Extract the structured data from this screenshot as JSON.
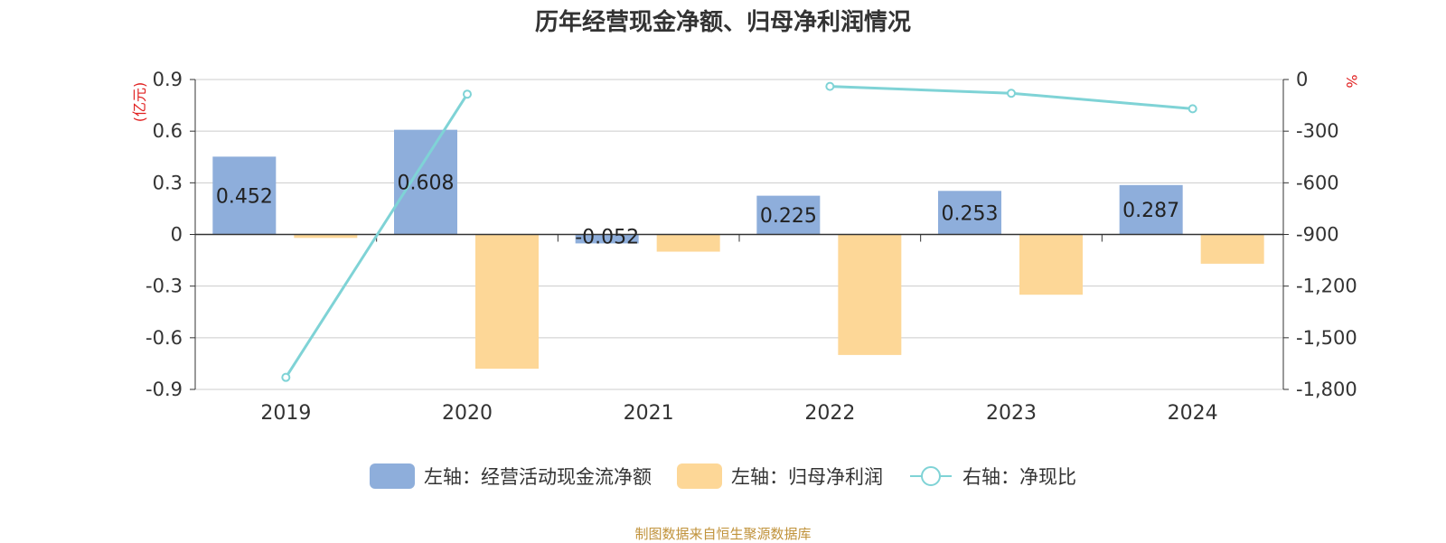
{
  "chart_data": {
    "type": "bar",
    "title": "历年经营现金净额、归母净利润情况",
    "categories": [
      "2019",
      "2020",
      "2021",
      "2022",
      "2023",
      "2024"
    ],
    "series": [
      {
        "name": "左轴：经营活动现金流净额",
        "type": "bar",
        "axis": "left",
        "color": "#8eaedb",
        "values": [
          0.452,
          0.608,
          -0.052,
          0.225,
          0.253,
          0.287
        ]
      },
      {
        "name": "左轴：归母净利润",
        "type": "bar",
        "axis": "left",
        "color": "#fdd797",
        "values": [
          -0.02,
          -0.78,
          -0.1,
          -0.7,
          -0.35,
          -0.17
        ]
      },
      {
        "name": "右轴：净现比",
        "type": "line",
        "axis": "right",
        "color": "#7fd3d6",
        "values": [
          -1730,
          -85,
          null,
          -40,
          -80,
          -170
        ]
      }
    ],
    "left_axis": {
      "label": "(亿元)",
      "ylim": [
        -0.9,
        0.9
      ],
      "ticks": [
        "0.9",
        "0.6",
        "0.3",
        "0",
        "-0.3",
        "-0.6",
        "-0.9"
      ]
    },
    "right_axis": {
      "label": "%",
      "ylim": [
        -1800,
        0
      ],
      "ticks": [
        "0",
        "-300",
        "-600",
        "-900",
        "-1,200",
        "-1,500",
        "-1,800"
      ]
    },
    "data_labels": [
      "0.452",
      "0.608",
      "-0.052",
      "0.225",
      "0.253",
      "0.287"
    ],
    "grid": true,
    "legend_position": "bottom"
  },
  "source": "制图数据来自恒生聚源数据库"
}
